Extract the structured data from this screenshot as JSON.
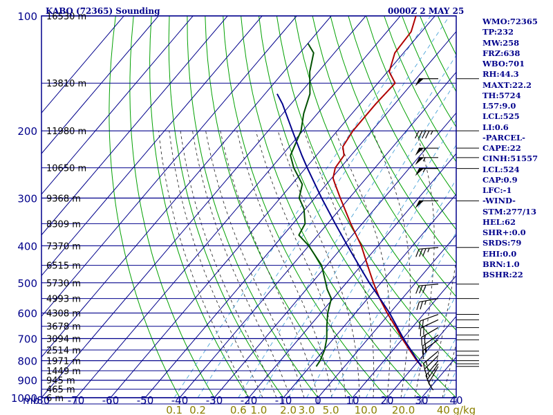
{
  "header": {
    "station_title": "KABQ (72365) Sounding",
    "valid_time": "0000Z  2 MAY 25"
  },
  "stats": [
    "WMO:72365",
    "TP:232",
    "MW:258",
    "FRZ:638",
    "WBO:701",
    "RH:44.3",
    "MAXT:22.2",
    "TH:5724",
    "L57:9.0",
    "LCL:525",
    "LI:0.6",
    "-PARCEL-",
    "CAPE:22",
    "CINH:51557",
    "LCL:524",
    "CAP:0.9",
    "LFC:-1",
    "-WIND-",
    "STM:277/13",
    "HEL:62",
    "SHR+:0.0",
    "SRDS:79",
    "EHI:0.0",
    "BRN:1.0",
    "BSHR:22"
  ],
  "colors": {
    "frame": "#00008b",
    "isobar": "#00008b",
    "isotherm": "#00008b",
    "dry_adiabat": "#00a000",
    "moist_adiabat": "#303030",
    "mixing_ratio": "#4aa3d8",
    "temperature": "#b00000",
    "dewpoint": "#005000",
    "parcel": "#00008b",
    "wind_barb": "#000000"
  },
  "chart_data": {
    "type": "skew-t",
    "y_scale": "log-pressure",
    "xlim": [
      -80,
      40
    ],
    "ylim": [
      1000,
      100
    ],
    "pressure_unit_label": "mb",
    "pressure_ticks": [
      100,
      200,
      300,
      400,
      500,
      600,
      700,
      800,
      900,
      1000
    ],
    "temperature_ticks": [
      -80,
      -70,
      -60,
      -50,
      -40,
      -30,
      -20,
      -10,
      0,
      10,
      20,
      30,
      40
    ],
    "height_labels": [
      {
        "text": "16530 m",
        "p": 100
      },
      {
        "text": "13810 m",
        "p": 150
      },
      {
        "text": "11980 m",
        "p": 200
      },
      {
        "text": "10650 m",
        "p": 250
      },
      {
        "text": "9368 m",
        "p": 300
      },
      {
        "text": "8309 m",
        "p": 350
      },
      {
        "text": "7370 m",
        "p": 400
      },
      {
        "text": "6515 m",
        "p": 450
      },
      {
        "text": "5730 m",
        "p": 500
      },
      {
        "text": "4993 m",
        "p": 550
      },
      {
        "text": "4308 m",
        "p": 600
      },
      {
        "text": "3678 m",
        "p": 650
      },
      {
        "text": "3094 m",
        "p": 700
      },
      {
        "text": "2514 m",
        "p": 750
      },
      {
        "text": "1971 m",
        "p": 800
      },
      {
        "text": "1449 m",
        "p": 850
      },
      {
        "text": "945 m",
        "p": 900
      },
      {
        "text": "465 m",
        "p": 950
      },
      {
        "text": "6 m",
        "p": 1000
      }
    ],
    "mixing_ratio_label": "g/kg",
    "mixing_ratio_lines": [
      0.1,
      0.2,
      0.6,
      1.0,
      2.0,
      3.0,
      5.0,
      10.0,
      20.0,
      30.0,
      40.0
    ],
    "mixing_ratio_tick_labels": [
      "0.1",
      "0.2",
      "0.6",
      "1.0",
      "2.0",
      "3.0",
      "5.0",
      "10.0",
      "20.0",
      "40"
    ],
    "series": [
      {
        "key": "temperature",
        "points": [
          [
            828,
            22.4
          ],
          [
            800,
            19.5
          ],
          [
            750,
            14.8
          ],
          [
            700,
            9.8
          ],
          [
            650,
            4.8
          ],
          [
            600,
            -0.8
          ],
          [
            550,
            -6.5
          ],
          [
            500,
            -12.2
          ],
          [
            450,
            -18.2
          ],
          [
            400,
            -24.8
          ],
          [
            350,
            -33.3
          ],
          [
            300,
            -42.6
          ],
          [
            276,
            -47.5
          ],
          [
            266,
            -49.6
          ],
          [
            250,
            -51.5
          ],
          [
            232,
            -52.0
          ],
          [
            220,
            -54.5
          ],
          [
            200,
            -55.5
          ],
          [
            170,
            -55.5
          ],
          [
            150,
            -55.0
          ],
          [
            140,
            -59.5
          ],
          [
            125,
            -62.5
          ],
          [
            110,
            -63.0
          ],
          [
            100,
            -65.5
          ]
        ]
      },
      {
        "key": "dewpoint",
        "points": [
          [
            828,
            -8.2
          ],
          [
            800,
            -8.5
          ],
          [
            750,
            -9.8
          ],
          [
            700,
            -12.0
          ],
          [
            650,
            -15.0
          ],
          [
            600,
            -18.0
          ],
          [
            550,
            -20.5
          ],
          [
            520,
            -24.0
          ],
          [
            500,
            -26.0
          ],
          [
            450,
            -31.5
          ],
          [
            400,
            -40.0
          ],
          [
            375,
            -45.5
          ],
          [
            350,
            -46.5
          ],
          [
            320,
            -50.5
          ],
          [
            300,
            -54.5
          ],
          [
            276,
            -57.0
          ],
          [
            250,
            -63.5
          ],
          [
            232,
            -67.5
          ],
          [
            210,
            -69.5
          ],
          [
            200,
            -70.5
          ],
          [
            180,
            -74.0
          ],
          [
            160,
            -77.0
          ],
          [
            140,
            -82.5
          ],
          [
            125,
            -86.0
          ],
          [
            118,
            -90.0
          ]
        ]
      },
      {
        "key": "parcel",
        "points": [
          [
            828,
            22.2
          ],
          [
            700,
            10.2
          ],
          [
            600,
            -0.1
          ],
          [
            525,
            -9.8
          ],
          [
            500,
            -13.4
          ],
          [
            450,
            -20.7
          ],
          [
            400,
            -28.8
          ],
          [
            350,
            -37.8
          ],
          [
            300,
            -48.0
          ],
          [
            250,
            -59.6
          ],
          [
            232,
            -64.2
          ],
          [
            200,
            -73.0
          ],
          [
            170,
            -82.5
          ],
          [
            160,
            -86.5
          ]
        ]
      }
    ],
    "wind_barbs": [
      {
        "p": 146,
        "dir": 270,
        "kt": 50
      },
      {
        "p": 200,
        "dir": 270,
        "kt": 45
      },
      {
        "p": 222,
        "dir": 270,
        "kt": 55
      },
      {
        "p": 235,
        "dir": 270,
        "kt": 55
      },
      {
        "p": 251,
        "dir": 270,
        "kt": 55
      },
      {
        "p": 305,
        "dir": 270,
        "kt": 50
      },
      {
        "p": 404,
        "dir": 265,
        "kt": 35
      },
      {
        "p": 504,
        "dir": 265,
        "kt": 30
      },
      {
        "p": 550,
        "dir": 260,
        "kt": 25
      },
      {
        "p": 605,
        "dir": 250,
        "kt": 20
      },
      {
        "p": 625,
        "dir": 245,
        "kt": 20
      },
      {
        "p": 655,
        "dir": 240,
        "kt": 20
      },
      {
        "p": 685,
        "dir": 235,
        "kt": 20
      },
      {
        "p": 705,
        "dir": 235,
        "kt": 15
      },
      {
        "p": 755,
        "dir": 230,
        "kt": 15
      },
      {
        "p": 775,
        "dir": 225,
        "kt": 15
      },
      {
        "p": 800,
        "dir": 220,
        "kt": 15
      },
      {
        "p": 815,
        "dir": 215,
        "kt": 10
      },
      {
        "p": 828,
        "dir": 210,
        "kt": 10
      }
    ]
  }
}
